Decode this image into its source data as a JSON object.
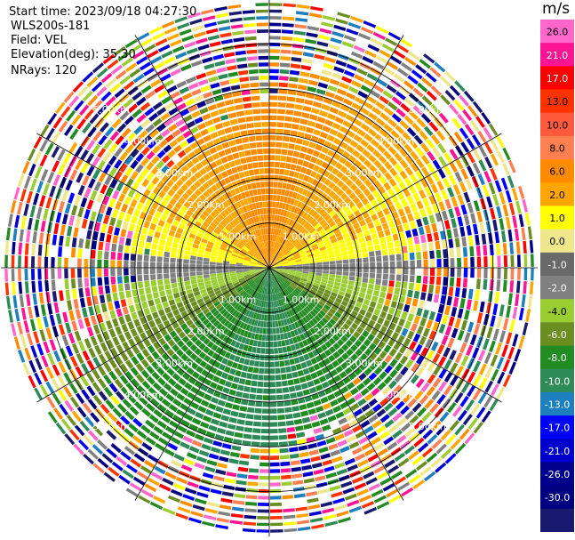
{
  "meta": {
    "start_time": "Start time: 2023/09/18 04:27:30",
    "instrument": "WLS200s-181",
    "field": "Field: VEL",
    "elevation": "Elevation(deg): 35.30",
    "nrays": "NRays: 120"
  },
  "chart_data": {
    "type": "heatmap",
    "subtype": "polar-ppi",
    "title": "",
    "field": "VEL",
    "num_rays": 120,
    "range_km_max": 6.0,
    "range_ring_labels": [
      "1.00km",
      "2.00km",
      "3.00km",
      "4.00km",
      "5.00km"
    ],
    "range_rings_km": [
      1,
      2,
      3,
      4,
      5
    ],
    "spoke_angles_deg": [
      0,
      30,
      60,
      90,
      120,
      150,
      180,
      210,
      240,
      270,
      300,
      330
    ],
    "colorbar": {
      "unit": "m/s",
      "tick_labels": [
        "26.0",
        "21.0",
        "17.0",
        "13.0",
        "10.0",
        "8.0",
        "6.0",
        "2.0",
        "1.0",
        "0.0",
        "-1.0",
        "-2.0",
        "-4.0",
        "-6.0",
        "-8.0",
        "-10.0",
        "-13.0",
        "-17.0",
        "-21.0",
        "-26.0",
        "-30.0"
      ],
      "colors": [
        "#ff66cc",
        "#ff1493",
        "#ff0000",
        "#ff3300",
        "#ff5a3c",
        "#ff7f50",
        "#ff8c00",
        "#ffa500",
        "#ffff00",
        "#f0e68c",
        "#696969",
        "#808080",
        "#9acd32",
        "#6b8e23",
        "#228b22",
        "#2e8b57",
        "#1e7fbf",
        "#0000ff",
        "#0000cd",
        "#00008b",
        "#000080",
        "#191970"
      ]
    },
    "wind_pattern": {
      "description": "radial velocity dipole",
      "positive_sector_center_deg": 0,
      "negative_sector_center_deg": 180,
      "clean_range_km": 3.8
    }
  }
}
